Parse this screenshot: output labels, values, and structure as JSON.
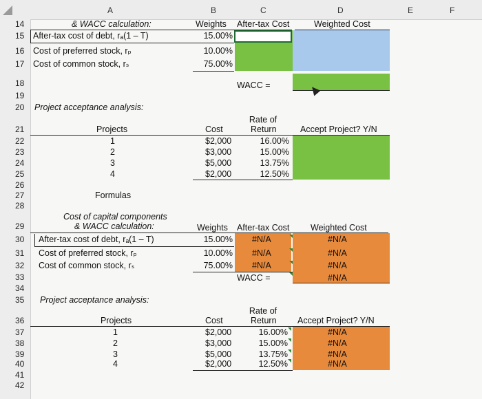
{
  "columns": [
    "A",
    "B",
    "C",
    "D",
    "E",
    "F"
  ],
  "top": {
    "row14": {
      "num": "14",
      "a": "& WACC calculation:",
      "b": "Weights",
      "c": "After-tax Cost",
      "d": "Weighted Cost"
    },
    "row15": {
      "num": "15",
      "a": "After-tax cost of debt, rₐ(1 – T)",
      "b": "15.00%"
    },
    "row16": {
      "num": "16",
      "a": "Cost of preferred stock, rₚ",
      "b": "10.00%"
    },
    "row17": {
      "num": "17",
      "a": "Cost of common stock, rₛ",
      "b": "75.00%"
    },
    "row18": {
      "num": "18",
      "c": "WACC ="
    },
    "row19": {
      "num": "19"
    },
    "row20": {
      "num": "20",
      "a": "Project acceptance analysis:"
    },
    "rate_of": "Rate of",
    "row21": {
      "num": "21",
      "a": "Projects",
      "b": "Cost",
      "c": "Return",
      "d": "Accept Project? Y/N"
    },
    "projects": [
      {
        "num": "22",
        "id": "1",
        "cost": "$2,000",
        "ret": "16.00%"
      },
      {
        "num": "23",
        "id": "2",
        "cost": "$3,000",
        "ret": "15.00%"
      },
      {
        "num": "24",
        "id": "3",
        "cost": "$5,000",
        "ret": "13.75%"
      },
      {
        "num": "25",
        "id": "4",
        "cost": "$2,000",
        "ret": "12.50%"
      }
    ],
    "row26": {
      "num": "26"
    },
    "row27": {
      "num": "27",
      "a": "Formulas"
    },
    "row28": {
      "num": "28"
    }
  },
  "bottom": {
    "title1": "Cost of capital components",
    "title2": "& WACC calculation:",
    "row29": {
      "num": "29",
      "b": "Weights",
      "c": "After-tax Cost",
      "d": "Weighted Cost"
    },
    "row30": {
      "num": "30",
      "a": "After-tax cost of debt, rₐ(1 – T)",
      "b": "15.00%",
      "c": "#N/A",
      "d": "#N/A"
    },
    "row31": {
      "num": "31",
      "a": "Cost of preferred stock, rₚ",
      "b": "10.00%",
      "c": "#N/A",
      "d": "#N/A"
    },
    "row32": {
      "num": "32",
      "a": "Cost of common stock, rₛ",
      "b": "75.00%",
      "c": "#N/A",
      "d": "#N/A"
    },
    "row33": {
      "num": "33",
      "c": "WACC =",
      "d": "#N/A"
    },
    "row34": {
      "num": "34"
    },
    "row35": {
      "num": "35",
      "a": "Project acceptance analysis:"
    },
    "rate_of": "Rate of",
    "row36": {
      "num": "36",
      "a": "Projects",
      "b": "Cost",
      "c": "Return",
      "d": "Accept Project? Y/N"
    },
    "projects": [
      {
        "num": "37",
        "id": "1",
        "cost": "$2,000",
        "ret": "16.00%",
        "accept": "#N/A"
      },
      {
        "num": "38",
        "id": "2",
        "cost": "$3,000",
        "ret": "15.00%",
        "accept": "#N/A"
      },
      {
        "num": "39",
        "id": "3",
        "cost": "$5,000",
        "ret": "13.75%",
        "accept": "#N/A"
      },
      {
        "num": "40",
        "id": "4",
        "cost": "$2,000",
        "ret": "12.50%",
        "accept": "#N/A"
      }
    ],
    "row41": {
      "num": "41"
    },
    "row42": {
      "num": "42"
    }
  },
  "colors": {
    "green": "#79c142",
    "blue": "#a8c8ec",
    "orange": "#e88a3c"
  }
}
